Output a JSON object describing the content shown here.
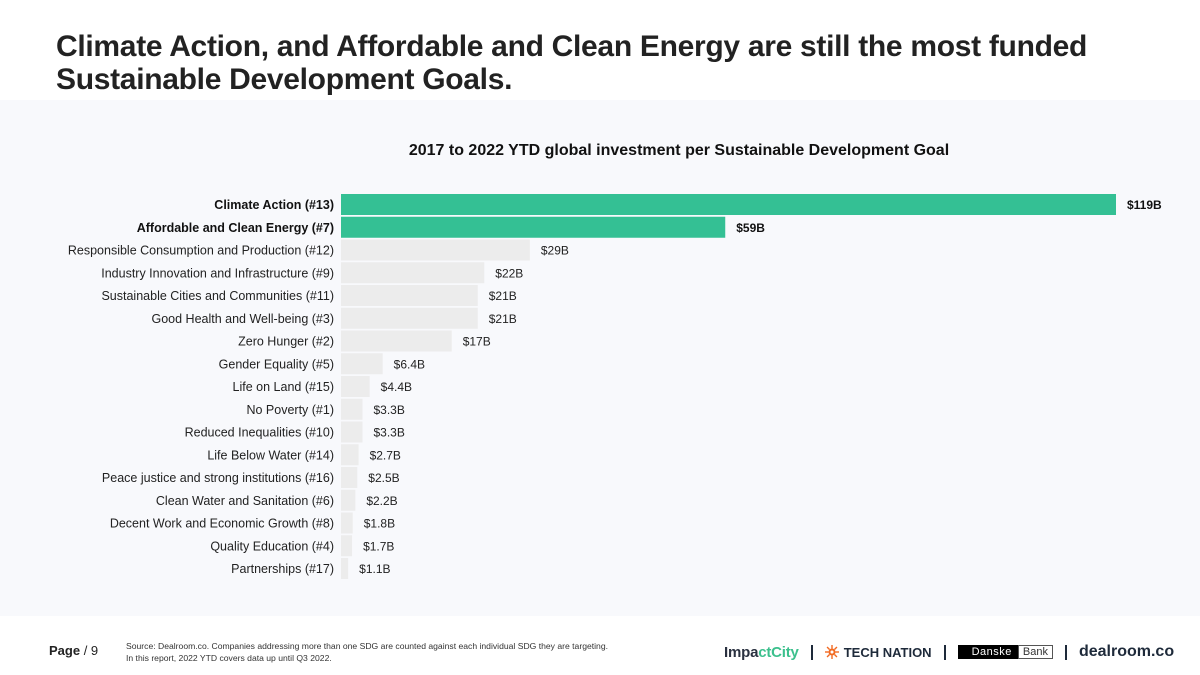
{
  "headline": "Climate Action, and Affordable and Clean Energy are still the most funded Sustainable Development Goals.",
  "footer": {
    "page_label": "Page",
    "page_sep": " / ",
    "page_number": "9",
    "source_line1": "Source: Dealroom.co. Companies addressing more than one SDG are counted against each individual SDG they are targeting.",
    "source_line2": "In this report, 2022 YTD covers data up until Q3 2022.",
    "logos": {
      "impactcity_a": "Impa",
      "impactcity_b": "ctCity",
      "technation": "TECH NATION",
      "danske_a": "Danske",
      "danske_b": "Bank",
      "dealroom": "dealroom.co"
    }
  },
  "colors": {
    "highlight": "#34c094",
    "default_bar": "#ececec",
    "panel_bg": "#f8f9fc"
  },
  "chart_data": {
    "type": "bar",
    "orientation": "horizontal",
    "title": "2017 to 2022 YTD global investment per Sustainable Development Goal",
    "xlabel": "",
    "ylabel": "",
    "unit": "$B",
    "xlim": [
      0,
      119
    ],
    "grid": false,
    "legend": "none",
    "categories": [
      "Climate Action (#13)",
      "Affordable and Clean Energy (#7)",
      "Responsible Consumption and Production (#12)",
      "Industry Innovation and Infrastructure (#9)",
      "Sustainable Cities and Communities (#11)",
      "Good Health and Well-being (#3)",
      "Zero Hunger (#2)",
      "Gender Equality (#5)",
      "Life on Land (#15)",
      "No Poverty (#1)",
      "Reduced Inequalities (#10)",
      "Life Below Water (#14)",
      "Peace justice and strong institutions (#16)",
      "Clean Water and Sanitation (#6)",
      "Decent Work and Economic Growth (#8)",
      "Quality Education (#4)",
      "Partnerships (#17)"
    ],
    "values": [
      119,
      59,
      29,
      22,
      21,
      21,
      17,
      6.4,
      4.4,
      3.3,
      3.3,
      2.7,
      2.5,
      2.2,
      1.8,
      1.7,
      1.1
    ],
    "value_labels": [
      "$119B",
      "$59B",
      "$29B",
      "$22B",
      "$21B",
      "$21B",
      "$17B",
      "$6.4B",
      "$4.4B",
      "$3.3B",
      "$3.3B",
      "$2.7B",
      "$2.5B",
      "$2.2B",
      "$1.8B",
      "$1.7B",
      "$1.1B"
    ],
    "highlighted": [
      true,
      true,
      false,
      false,
      false,
      false,
      false,
      false,
      false,
      false,
      false,
      false,
      false,
      false,
      false,
      false,
      false
    ]
  }
}
